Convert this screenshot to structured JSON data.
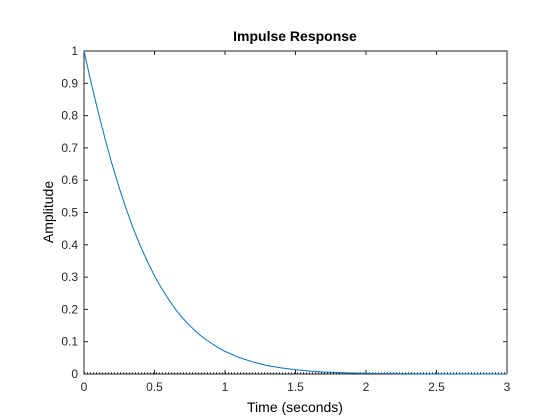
{
  "chart_data": {
    "type": "line",
    "title": "Impulse Response",
    "xlabel": "Time (seconds)",
    "ylabel": "Amplitude",
    "xlim": [
      0,
      3
    ],
    "ylim": [
      0,
      1
    ],
    "xticks": [
      0,
      0.5,
      1,
      1.5,
      2,
      2.5,
      3
    ],
    "xtick_labels": [
      "0",
      "0.5",
      "1",
      "1.5",
      "2",
      "2.5",
      "3"
    ],
    "yticks": [
      0,
      0.1,
      0.2,
      0.3,
      0.4,
      0.5,
      0.6,
      0.7,
      0.8,
      0.9,
      1
    ],
    "ytick_labels": [
      "0",
      "0.1",
      "0.2",
      "0.3",
      "0.4",
      "0.5",
      "0.6",
      "0.7",
      "0.8",
      "0.9",
      "1"
    ],
    "grid": false,
    "series": [
      {
        "color": "#0072BD",
        "x": [
          0,
          0.05,
          0.1,
          0.15,
          0.2,
          0.25,
          0.3,
          0.35,
          0.4,
          0.45,
          0.5,
          0.55,
          0.6,
          0.65,
          0.7,
          0.75,
          0.8,
          0.85,
          0.9,
          0.95,
          1.0,
          1.1,
          1.2,
          1.3,
          1.4,
          1.5,
          1.6,
          1.7,
          1.8,
          1.9,
          2.0,
          2.2,
          2.4,
          2.6,
          2.8,
          3.0
        ],
        "y": [
          1.0,
          0.903,
          0.812,
          0.727,
          0.648,
          0.576,
          0.51,
          0.45,
          0.396,
          0.348,
          0.304,
          0.265,
          0.231,
          0.2,
          0.173,
          0.15,
          0.129,
          0.111,
          0.096,
          0.082,
          0.07,
          0.051,
          0.037,
          0.026,
          0.019,
          0.013,
          0.009,
          0.006,
          0.0045,
          0.003,
          0.002,
          0.001,
          0.0005,
          0.0002,
          0.0001,
          0.0
        ]
      }
    ],
    "baseline": {
      "y": 0,
      "style": "dotted",
      "color": "#000000"
    }
  }
}
